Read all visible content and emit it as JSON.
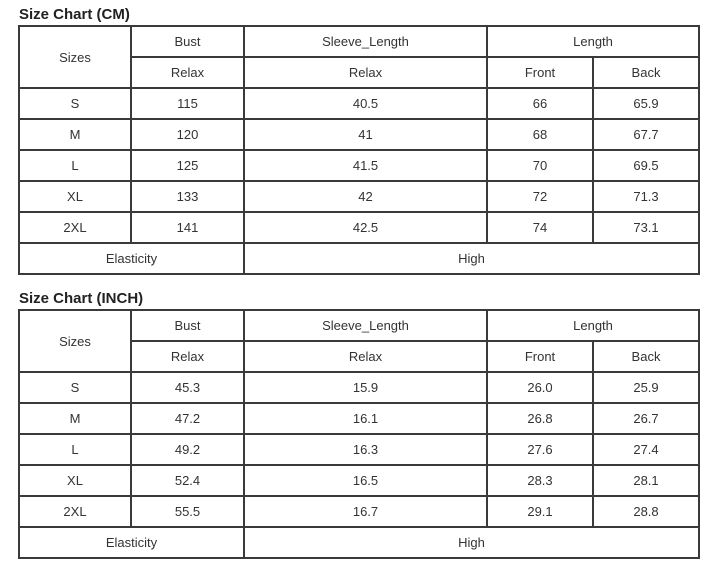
{
  "tables": [
    {
      "title": "Size Chart (CM)",
      "headers": {
        "sizes": "Sizes",
        "bust": "Bust",
        "sleeve": "Sleeve_Length",
        "length": "Length",
        "relax1": "Relax",
        "relax2": "Relax",
        "front": "Front",
        "back": "Back"
      },
      "rows": [
        [
          "S",
          "115",
          "40.5",
          "66",
          "65.9"
        ],
        [
          "M",
          "120",
          "41",
          "68",
          "67.7"
        ],
        [
          "L",
          "125",
          "41.5",
          "70",
          "69.5"
        ],
        [
          "XL",
          "133",
          "42",
          "72",
          "71.3"
        ],
        [
          "2XL",
          "141",
          "42.5",
          "74",
          "73.1"
        ]
      ],
      "elasticity_label": "Elasticity",
      "elasticity_value": "High"
    },
    {
      "title": "Size Chart (INCH)",
      "headers": {
        "sizes": "Sizes",
        "bust": "Bust",
        "sleeve": "Sleeve_Length",
        "length": "Length",
        "relax1": "Relax",
        "relax2": "Relax",
        "front": "Front",
        "back": "Back"
      },
      "rows": [
        [
          "S",
          "45.3",
          "15.9",
          "26.0",
          "25.9"
        ],
        [
          "M",
          "47.2",
          "16.1",
          "26.8",
          "26.7"
        ],
        [
          "L",
          "49.2",
          "16.3",
          "27.6",
          "27.4"
        ],
        [
          "XL",
          "52.4",
          "16.5",
          "28.3",
          "28.1"
        ],
        [
          "2XL",
          "55.5",
          "16.7",
          "29.1",
          "28.8"
        ]
      ],
      "elasticity_label": "Elasticity",
      "elasticity_value": "High"
    }
  ]
}
